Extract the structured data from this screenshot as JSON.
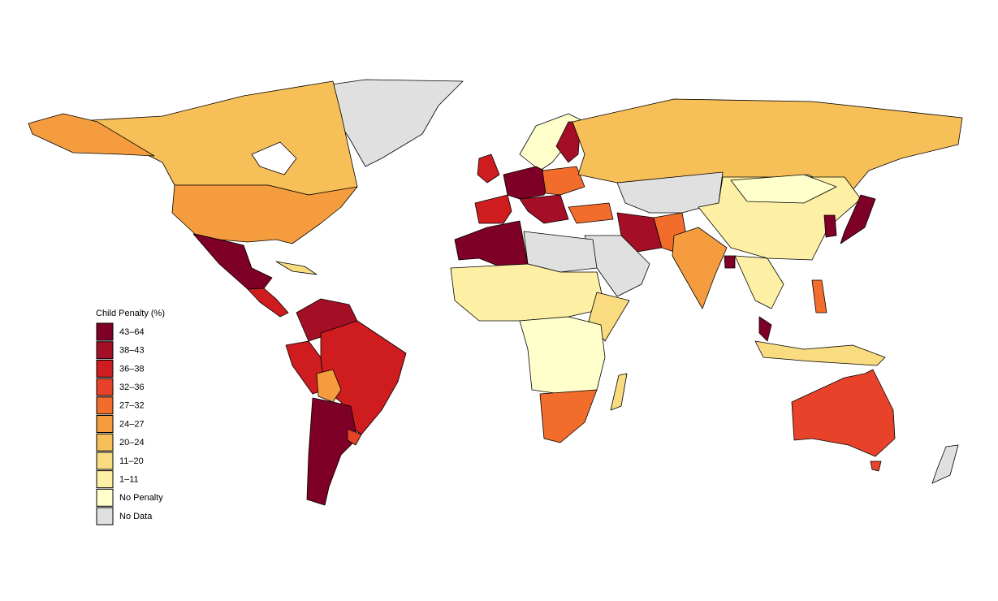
{
  "legend": {
    "title": "Child Penalty (%)",
    "items": [
      {
        "label": "43–64",
        "color": "#7f0026"
      },
      {
        "label": "38–43",
        "color": "#a50f26"
      },
      {
        "label": "36–38",
        "color": "#ce1c1f"
      },
      {
        "label": "32–36",
        "color": "#e8432a"
      },
      {
        "label": "27–32",
        "color": "#f26c2b"
      },
      {
        "label": "24–27",
        "color": "#f59d3e"
      },
      {
        "label": "20–24",
        "color": "#f7bf57"
      },
      {
        "label": "11–20",
        "color": "#f9dc7f"
      },
      {
        "label": "1–11",
        "color": "#fdf0a4"
      },
      {
        "label": "No Penalty",
        "color": "#ffffcc"
      },
      {
        "label": "No Data",
        "color": "#e0e0e0"
      }
    ]
  }
}
